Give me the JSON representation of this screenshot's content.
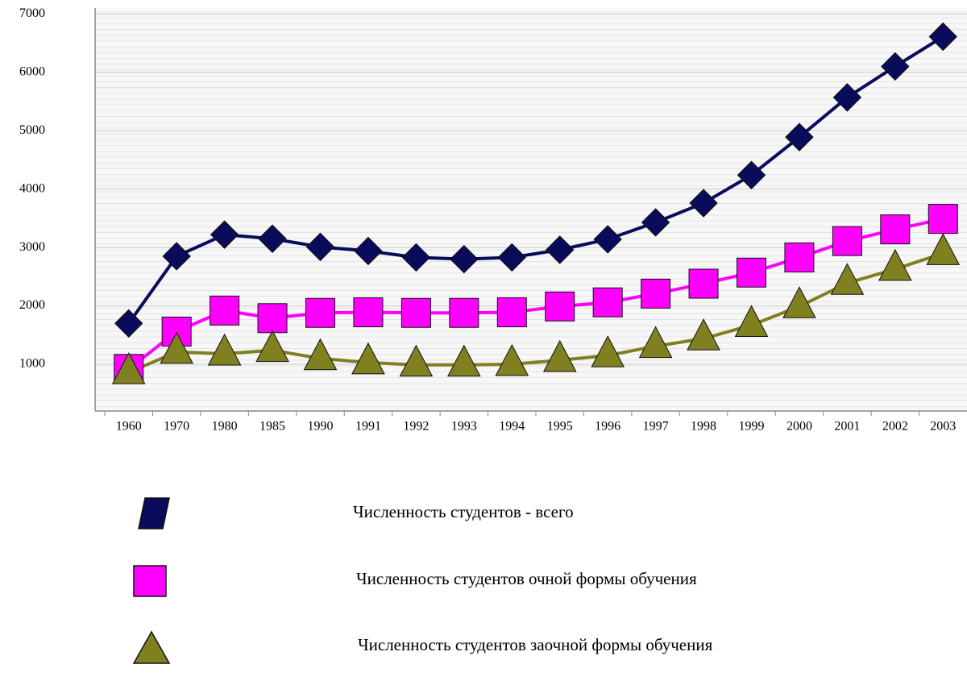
{
  "chart_data": {
    "type": "line",
    "categories": [
      "1960",
      "1970",
      "1980",
      "1985",
      "1990",
      "1991",
      "1992",
      "1993",
      "1994",
      "1995",
      "1996",
      "1997",
      "1998",
      "1999",
      "2000",
      "2001",
      "2002",
      "2003"
    ],
    "series": [
      {
        "name": "Численность студентов - всего",
        "color": "#0b0b5c",
        "marker": "diamond",
        "values": [
          1700,
          2850,
          3220,
          3150,
          3010,
          2940,
          2830,
          2800,
          2830,
          2960,
          3140,
          3430,
          3760,
          4240,
          4890,
          5570,
          6100,
          6610
        ]
      },
      {
        "name": "Численность студентов очной формы обучения",
        "color": "#ff00ff",
        "marker": "square",
        "values": [
          920,
          1560,
          1920,
          1790,
          1880,
          1890,
          1880,
          1880,
          1890,
          1990,
          2060,
          2210,
          2380,
          2570,
          2830,
          3110,
          3310,
          3490
        ]
      },
      {
        "name": "Численность студентов заочной формы обучения",
        "color": "#808020",
        "marker": "triangle",
        "values": [
          860,
          1210,
          1180,
          1240,
          1100,
          1030,
          990,
          990,
          1000,
          1070,
          1150,
          1310,
          1440,
          1670,
          1990,
          2390,
          2630,
          2900
        ]
      }
    ],
    "ylim": [
      200,
      7100
    ],
    "yticks": [
      1000,
      2000,
      3000,
      4000,
      5000,
      6000,
      7000
    ],
    "grid": true
  }
}
